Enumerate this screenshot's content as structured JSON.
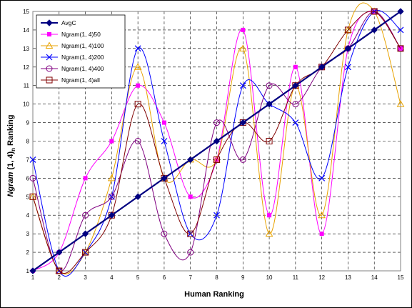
{
  "chart_data": {
    "type": "line",
    "xlabel": "Human Ranking",
    "ylabel_parts": [
      "Ngram",
      " (1, 4)",
      "n",
      " Ranking"
    ],
    "x": [
      1,
      2,
      3,
      4,
      5,
      6,
      7,
      8,
      9,
      10,
      11,
      12,
      13,
      14,
      15
    ],
    "xlim": [
      1,
      15
    ],
    "ylim": [
      1,
      15
    ],
    "xticks": [
      "1",
      "2",
      "3",
      "4",
      "5",
      "6",
      "7",
      "8",
      "9",
      "10",
      "11",
      "12",
      "13",
      "14",
      "15"
    ],
    "yticks": [
      "1",
      "2",
      "3",
      "4",
      "5",
      "6",
      "7",
      "8",
      "9",
      "10",
      "11",
      "12",
      "13",
      "14",
      "15"
    ],
    "grid": true,
    "smoothed": true,
    "legend_position": "top-left",
    "series": [
      {
        "name": "AvgC",
        "color": "#000080",
        "marker": "diamond",
        "values": [
          1,
          2,
          3,
          4,
          5,
          6,
          7,
          8,
          9,
          10,
          11,
          12,
          13,
          14,
          15
        ]
      },
      {
        "name": "Ngram(1, 4)50",
        "color": "#ff00ff",
        "marker": "square",
        "values": [
          1,
          2,
          6,
          8,
          11,
          9,
          5,
          7,
          14,
          4,
          12,
          3,
          13,
          15,
          13
        ]
      },
      {
        "name": "Ngram(1, 4)100",
        "color": "#e8a200",
        "marker": "triangle",
        "values": [
          5,
          1,
          2,
          6,
          12,
          6,
          7,
          7,
          13,
          3,
          11,
          4,
          14,
          15,
          10
        ]
      },
      {
        "name": "Ngram(1, 4)200",
        "color": "#0000ff",
        "marker": "x",
        "values": [
          7,
          1,
          2,
          5,
          13,
          8,
          3,
          4,
          11,
          10,
          9,
          6,
          12,
          15,
          14
        ]
      },
      {
        "name": "Ngram(1, 4)400",
        "color": "#800080",
        "marker": "circle",
        "values": [
          6,
          1,
          4,
          5,
          8,
          3,
          2,
          9,
          7,
          11,
          10,
          12,
          13,
          15,
          13
        ]
      },
      {
        "name": "Ngram(1, 4)all",
        "color": "#800000",
        "marker": "open-square",
        "values": [
          5,
          1,
          2,
          4,
          10,
          6,
          3,
          7,
          9,
          8,
          11,
          12,
          14,
          15,
          13
        ]
      }
    ]
  }
}
